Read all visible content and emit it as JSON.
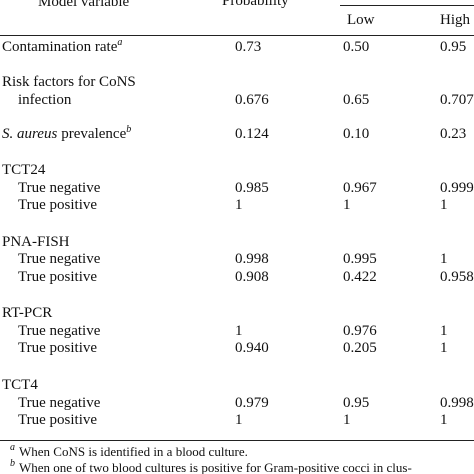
{
  "header": {
    "variable": "Model variable",
    "probability": "Probability",
    "low": "Low",
    "high": "High"
  },
  "rows": [
    {
      "label": "Contamination rate",
      "note": "a",
      "probability": "0.73",
      "low": "0.50",
      "high": "0.95"
    },
    {
      "label": "Risk factors for CoNS",
      "label_cont": "infection",
      "probability": "0.676",
      "low": "0.65",
      "high": "0.707"
    },
    {
      "label_italic": "S. aureus",
      "label": "prevalence",
      "note": "b",
      "probability": "0.124",
      "low": "0.10",
      "high": "0.23"
    }
  ],
  "tests": [
    {
      "name": "TCT24",
      "rows": [
        {
          "label": "True negative",
          "probability": "0.985",
          "low": "0.967",
          "high": "0.9990"
        },
        {
          "label": "True positive",
          "probability": "1",
          "low": "1",
          "high": "1"
        }
      ]
    },
    {
      "name": "PNA-FISH",
      "rows": [
        {
          "label": "True negative",
          "probability": "0.998",
          "low": "0.995",
          "high": "1"
        },
        {
          "label": "True positive",
          "probability": "0.908",
          "low": "0.422",
          "high": "0.9580"
        }
      ]
    },
    {
      "name": "RT-PCR",
      "rows": [
        {
          "label": "True negative",
          "probability": "1",
          "low": "0.976",
          "high": "1"
        },
        {
          "label": "True positive",
          "probability": "0.940",
          "low": "0.205",
          "high": "1"
        }
      ]
    },
    {
      "name": "TCT4",
      "rows": [
        {
          "label": "True negative",
          "probability": "0.979",
          "low": "0.95",
          "high": "0.9980"
        },
        {
          "label": "True positive",
          "probability": "1",
          "low": "1",
          "high": "1"
        }
      ]
    }
  ],
  "footnotes": [
    {
      "mark": "a",
      "text": "When CoNS is identified in a blood culture."
    },
    {
      "mark": "b",
      "text": "When one of two blood cultures is positive for Gram-positive cocci in clus-"
    }
  ]
}
